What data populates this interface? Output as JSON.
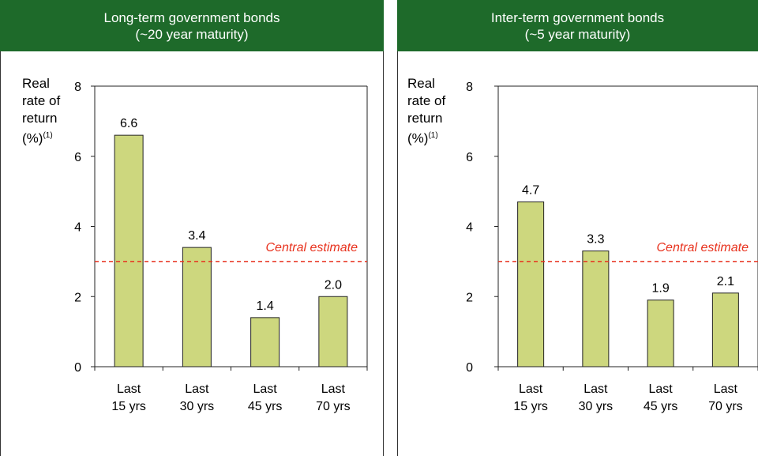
{
  "panels": [
    {
      "header": {
        "line1": "Long-term government bonds",
        "line2": "(~20 year maturity)"
      },
      "ylabel": {
        "line1": "Real",
        "line2": "rate of",
        "line3": "return",
        "line4": "(%)",
        "sup": "(1)"
      }
    },
    {
      "header": {
        "line1": "Inter-term government bonds",
        "line2": "(~5 year maturity)"
      },
      "ylabel": {
        "line1": "Real",
        "line2": "rate of",
        "line3": "return",
        "line4": "(%)",
        "sup": "(1)"
      }
    }
  ],
  "chart_data": [
    {
      "type": "bar",
      "title": "Long-term government bonds (~20 year maturity)",
      "ylabel": "Real rate of return (%)(1)",
      "categories": [
        [
          "Last",
          "15 yrs"
        ],
        [
          "Last",
          "30 yrs"
        ],
        [
          "Last",
          "45 yrs"
        ],
        [
          "Last",
          "70 yrs"
        ]
      ],
      "values": [
        6.6,
        3.4,
        1.4,
        2.0
      ],
      "value_labels": [
        "6.6",
        "3.4",
        "1.4",
        "2.0"
      ],
      "ylim": [
        0,
        8
      ],
      "yticks": [
        0,
        2,
        4,
        6,
        8
      ],
      "reference_line": {
        "value": 3.0,
        "label": "Central estimate",
        "color": "#e8321e"
      },
      "bar_color": "#cdd77e"
    },
    {
      "type": "bar",
      "title": "Inter-term government bonds (~5 year maturity)",
      "ylabel": "Real rate of return (%)(1)",
      "categories": [
        [
          "Last",
          "15 yrs"
        ],
        [
          "Last",
          "30 yrs"
        ],
        [
          "Last",
          "45 yrs"
        ],
        [
          "Last",
          "70 yrs"
        ]
      ],
      "values": [
        4.7,
        3.3,
        1.9,
        2.1
      ],
      "value_labels": [
        "4.7",
        "3.3",
        "1.9",
        "2.1"
      ],
      "ylim": [
        0,
        8
      ],
      "yticks": [
        0,
        2,
        4,
        6,
        8
      ],
      "reference_line": {
        "value": 3.0,
        "label": "Central estimate",
        "color": "#e8321e"
      },
      "bar_color": "#cdd77e"
    }
  ]
}
